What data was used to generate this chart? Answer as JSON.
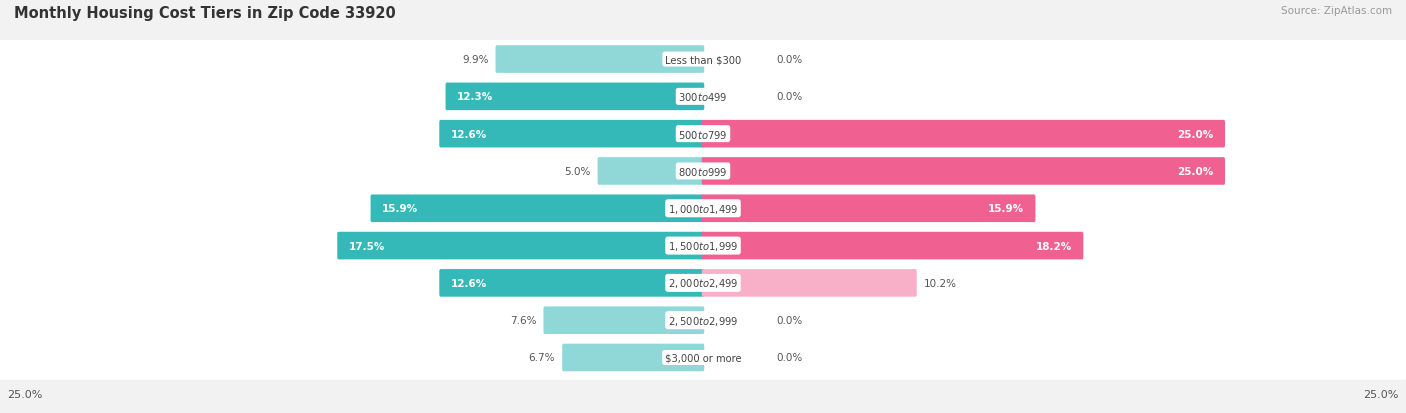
{
  "title": "Monthly Housing Cost Tiers in Zip Code 33920",
  "source": "Source: ZipAtlas.com",
  "categories": [
    "Less than $300",
    "$300 to $499",
    "$500 to $799",
    "$800 to $999",
    "$1,000 to $1,499",
    "$1,500 to $1,999",
    "$2,000 to $2,499",
    "$2,500 to $2,999",
    "$3,000 or more"
  ],
  "owner_values": [
    9.9,
    12.3,
    12.6,
    5.0,
    15.9,
    17.5,
    12.6,
    7.6,
    6.7
  ],
  "renter_values": [
    0.0,
    0.0,
    25.0,
    25.0,
    15.9,
    18.2,
    10.2,
    0.0,
    0.0
  ],
  "owner_color_dark": "#35b8b8",
  "owner_color_light": "#90d8d8",
  "renter_color_dark": "#f06090",
  "renter_color_light": "#f8b0c8",
  "background_color": "#f2f2f2",
  "max_val": 25.0
}
